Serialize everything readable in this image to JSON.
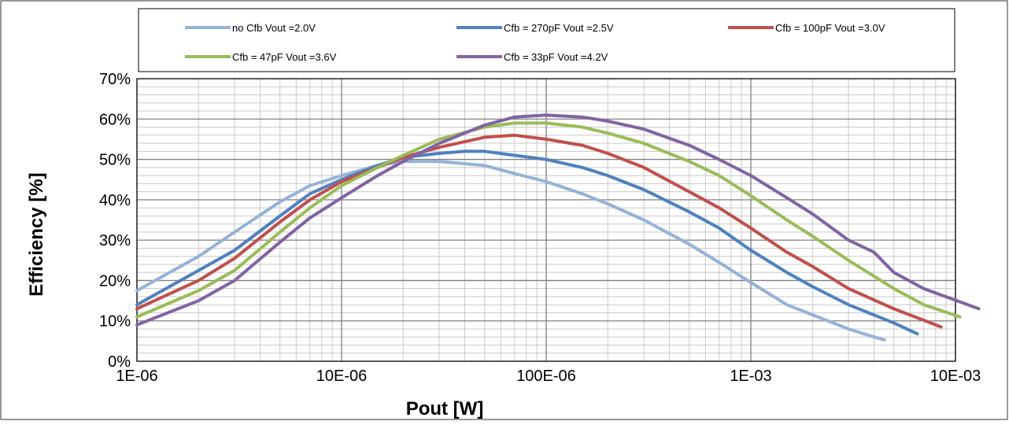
{
  "chart_data": {
    "type": "line",
    "title": "",
    "xlabel": "Pout [W]",
    "ylabel": "Efficiency [%]",
    "x_scale": "log",
    "xlim": [
      1e-06,
      0.01
    ],
    "ylim": [
      0,
      70
    ],
    "x_ticks": [
      {
        "value": 1e-06,
        "label": "1E-06"
      },
      {
        "value": 1e-05,
        "label": "10E-06"
      },
      {
        "value": 0.0001,
        "label": "100E-06"
      },
      {
        "value": 0.001,
        "label": "1E-03"
      },
      {
        "value": 0.01,
        "label": "10E-03"
      }
    ],
    "y_ticks": [
      {
        "value": 0,
        "label": "0%"
      },
      {
        "value": 10,
        "label": "10%"
      },
      {
        "value": 20,
        "label": "20%"
      },
      {
        "value": 30,
        "label": "30%"
      },
      {
        "value": 40,
        "label": "40%"
      },
      {
        "value": 50,
        "label": "50%"
      },
      {
        "value": 60,
        "label": "60%"
      },
      {
        "value": 70,
        "label": "70%"
      }
    ],
    "grid": true,
    "legend_position": "top",
    "series": [
      {
        "name": "no Cfb Vout =2.0V",
        "color": "#95b3d7",
        "points": [
          [
            1e-06,
            17.5
          ],
          [
            2e-06,
            26
          ],
          [
            3e-06,
            32
          ],
          [
            5e-06,
            39.5
          ],
          [
            7e-06,
            43.5
          ],
          [
            1e-05,
            46
          ],
          [
            1.5e-05,
            48.5
          ],
          [
            2e-05,
            49.5
          ],
          [
            3e-05,
            49.5
          ],
          [
            5e-05,
            48.5
          ],
          [
            7e-05,
            46.5
          ],
          [
            0.0001,
            44.5
          ],
          [
            0.00015,
            41.5
          ],
          [
            0.0002,
            39
          ],
          [
            0.0003,
            35
          ],
          [
            0.0005,
            29
          ],
          [
            0.0007,
            24.5
          ],
          [
            0.001,
            19.5
          ],
          [
            0.0015,
            14
          ],
          [
            0.002,
            11.5
          ],
          [
            0.003,
            8
          ],
          [
            0.004,
            6
          ],
          [
            0.0045,
            5.3
          ]
        ]
      },
      {
        "name": "Cfb = 270pF Vout =2.5V",
        "color": "#4f81bd",
        "points": [
          [
            1e-06,
            14
          ],
          [
            2e-06,
            22.5
          ],
          [
            3e-06,
            27.5
          ],
          [
            5e-06,
            36
          ],
          [
            7e-06,
            41.5
          ],
          [
            1e-05,
            45
          ],
          [
            1.5e-05,
            48.5
          ],
          [
            2e-05,
            50.5
          ],
          [
            3e-05,
            51.5
          ],
          [
            4e-05,
            52
          ],
          [
            5e-05,
            52
          ],
          [
            7e-05,
            51
          ],
          [
            0.0001,
            50
          ],
          [
            0.00015,
            48
          ],
          [
            0.0002,
            46
          ],
          [
            0.0003,
            42.5
          ],
          [
            0.0005,
            37
          ],
          [
            0.0007,
            33
          ],
          [
            0.001,
            27.5
          ],
          [
            0.0015,
            22
          ],
          [
            0.002,
            18.5
          ],
          [
            0.003,
            14
          ],
          [
            0.005,
            9.5
          ],
          [
            0.0065,
            6.8
          ]
        ]
      },
      {
        "name": "Cfb = 100pF Vout =3.0V",
        "color": "#c0504d",
        "points": [
          [
            1e-06,
            13
          ],
          [
            2e-06,
            20
          ],
          [
            3e-06,
            25.5
          ],
          [
            5e-06,
            34.5
          ],
          [
            7e-06,
            40
          ],
          [
            1e-05,
            44.5
          ],
          [
            1.5e-05,
            48
          ],
          [
            2e-05,
            50.5
          ],
          [
            3e-05,
            53
          ],
          [
            5e-05,
            55.5
          ],
          [
            7e-05,
            56
          ],
          [
            0.0001,
            55
          ],
          [
            0.00015,
            53.5
          ],
          [
            0.0002,
            51.5
          ],
          [
            0.0003,
            48
          ],
          [
            0.0005,
            42
          ],
          [
            0.0007,
            38
          ],
          [
            0.001,
            33
          ],
          [
            0.0015,
            27
          ],
          [
            0.002,
            23.5
          ],
          [
            0.003,
            18
          ],
          [
            0.005,
            13
          ],
          [
            0.0085,
            8.5
          ]
        ]
      },
      {
        "name": "Cfb = 47pF Vout =3.6V",
        "color": "#9bbb59",
        "points": [
          [
            1e-06,
            11
          ],
          [
            2e-06,
            17.5
          ],
          [
            3e-06,
            22.5
          ],
          [
            5e-06,
            32
          ],
          [
            7e-06,
            38
          ],
          [
            1e-05,
            43.5
          ],
          [
            1.5e-05,
            48
          ],
          [
            2e-05,
            51
          ],
          [
            3e-05,
            55
          ],
          [
            5e-05,
            58
          ],
          [
            7e-05,
            59
          ],
          [
            0.0001,
            59
          ],
          [
            0.00015,
            58
          ],
          [
            0.0002,
            56.5
          ],
          [
            0.0003,
            54
          ],
          [
            0.0005,
            49.5
          ],
          [
            0.0007,
            46
          ],
          [
            0.001,
            41
          ],
          [
            0.0015,
            35
          ],
          [
            0.002,
            31
          ],
          [
            0.003,
            25
          ],
          [
            0.005,
            18
          ],
          [
            0.007,
            14
          ],
          [
            0.0105,
            11
          ]
        ]
      },
      {
        "name": "Cfb = 33pF Vout =4.2V",
        "color": "#8064a2",
        "points": [
          [
            1e-06,
            9
          ],
          [
            2e-06,
            15
          ],
          [
            3e-06,
            20
          ],
          [
            5e-06,
            29.5
          ],
          [
            7e-06,
            35.5
          ],
          [
            1e-05,
            40.5
          ],
          [
            1.5e-05,
            46
          ],
          [
            2e-05,
            49.5
          ],
          [
            3e-05,
            54
          ],
          [
            5e-05,
            58.5
          ],
          [
            7e-05,
            60.5
          ],
          [
            0.0001,
            61
          ],
          [
            0.00015,
            60.5
          ],
          [
            0.0002,
            59.5
          ],
          [
            0.0003,
            57.5
          ],
          [
            0.0005,
            53.5
          ],
          [
            0.0007,
            50
          ],
          [
            0.001,
            46
          ],
          [
            0.0015,
            40.5
          ],
          [
            0.002,
            36.5
          ],
          [
            0.003,
            30
          ],
          [
            0.004,
            27
          ],
          [
            0.005,
            22
          ],
          [
            0.007,
            18
          ],
          [
            0.013,
            13
          ]
        ]
      }
    ]
  }
}
